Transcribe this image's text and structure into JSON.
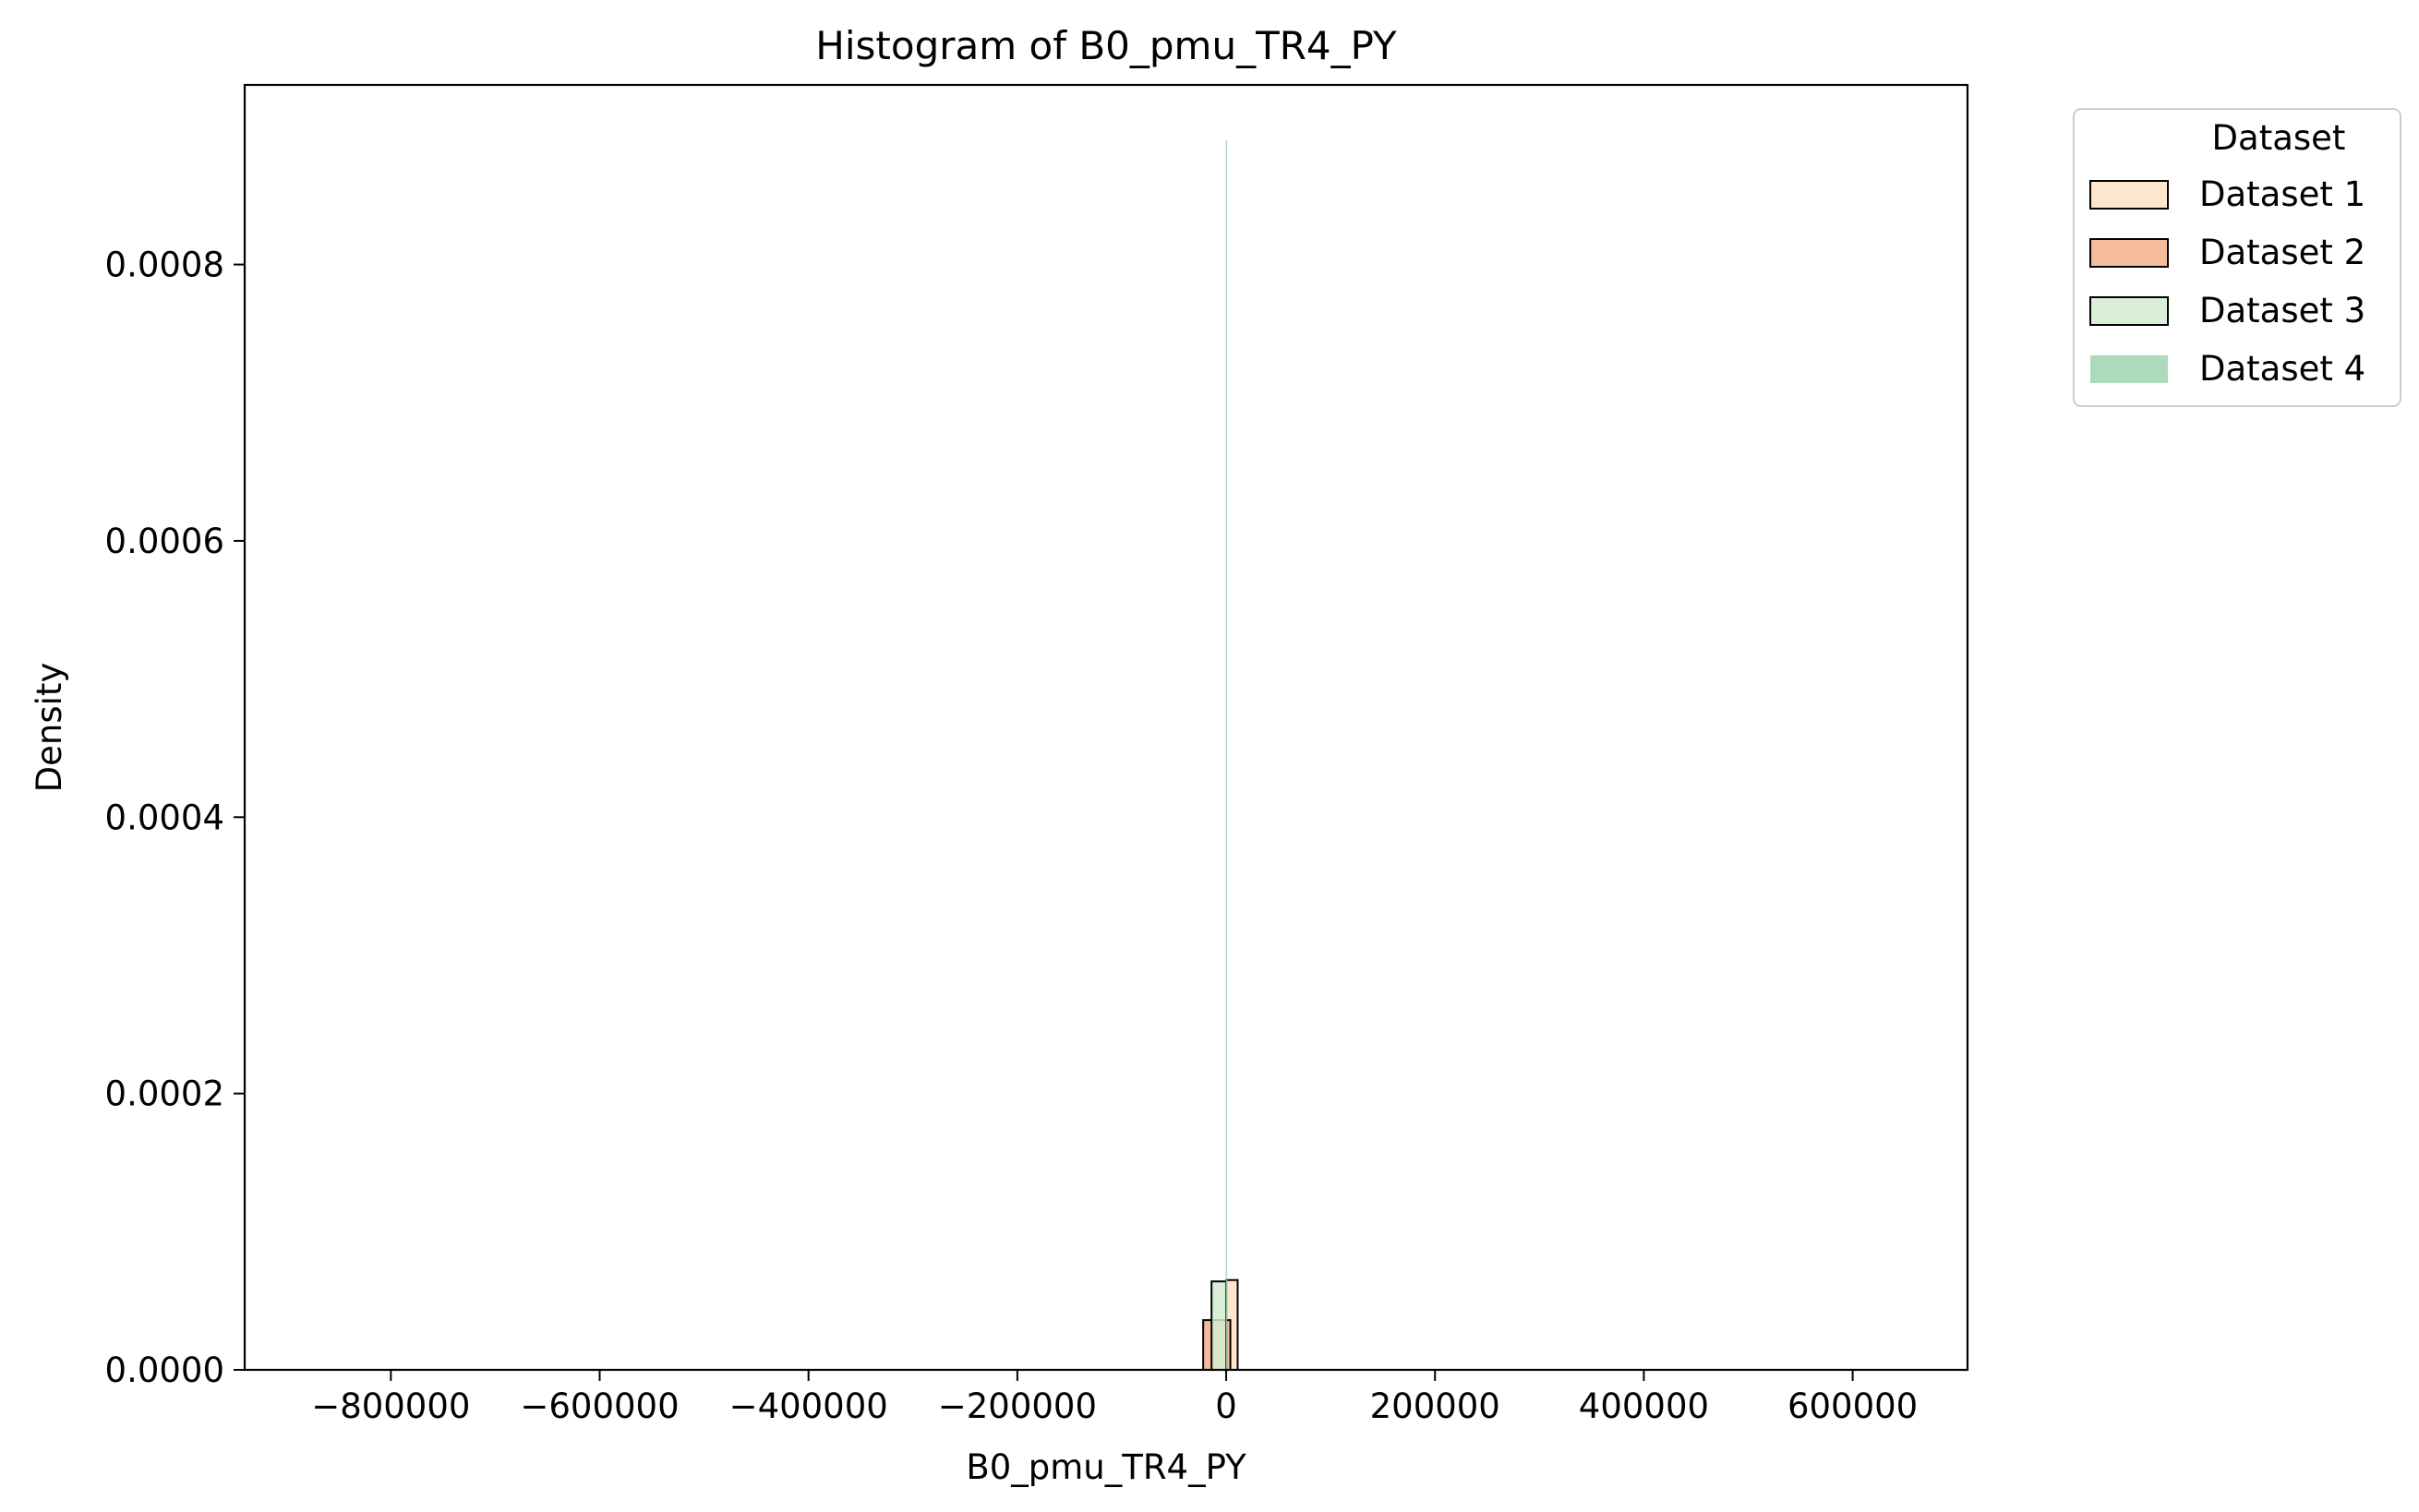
{
  "chart_data": {
    "type": "histogram",
    "title": "Histogram of B0_pmu_TR4_PY",
    "xlabel": "B0_pmu_TR4_PY",
    "ylabel": "Density",
    "xlim": [
      -940000,
      710000
    ],
    "ylim": [
      0,
      0.00093
    ],
    "xticks": [
      -800000,
      -600000,
      -400000,
      -200000,
      0,
      200000,
      400000,
      600000
    ],
    "xtick_labels": [
      "−800000",
      "−600000",
      "−400000",
      "−200000",
      "0",
      "200000",
      "400000",
      "600000"
    ],
    "yticks": [
      0,
      0.0002,
      0.0004,
      0.0006,
      0.0008
    ],
    "ytick_labels": [
      "0.0000",
      "0.0002",
      "0.0004",
      "0.0006",
      "0.0008"
    ],
    "grid": false,
    "legend": {
      "title": "Dataset",
      "position": "outside-top-right"
    },
    "series": [
      {
        "name": "Dataset 1",
        "color": "#fde0c5",
        "edgecolor": "#000000",
        "bins": [
          {
            "x0": 0,
            "x1": 11000,
            "density": 6.5e-05
          }
        ]
      },
      {
        "name": "Dataset 2",
        "color": "#f2b08c",
        "edgecolor": "#000000",
        "bins": [
          {
            "x0": -22000,
            "x1": 4000,
            "density": 3.6e-05
          }
        ]
      },
      {
        "name": "Dataset 3",
        "color": "#d4ecd0",
        "edgecolor": "#000000",
        "bins": [
          {
            "x0": -14000,
            "x1": 0,
            "density": 6.4e-05
          }
        ]
      },
      {
        "name": "Dataset 4",
        "color": "#9fd3ae",
        "edgecolor": "none",
        "bins": [
          {
            "x0": -400,
            "x1": 400,
            "density": 0.00089
          }
        ]
      }
    ]
  }
}
